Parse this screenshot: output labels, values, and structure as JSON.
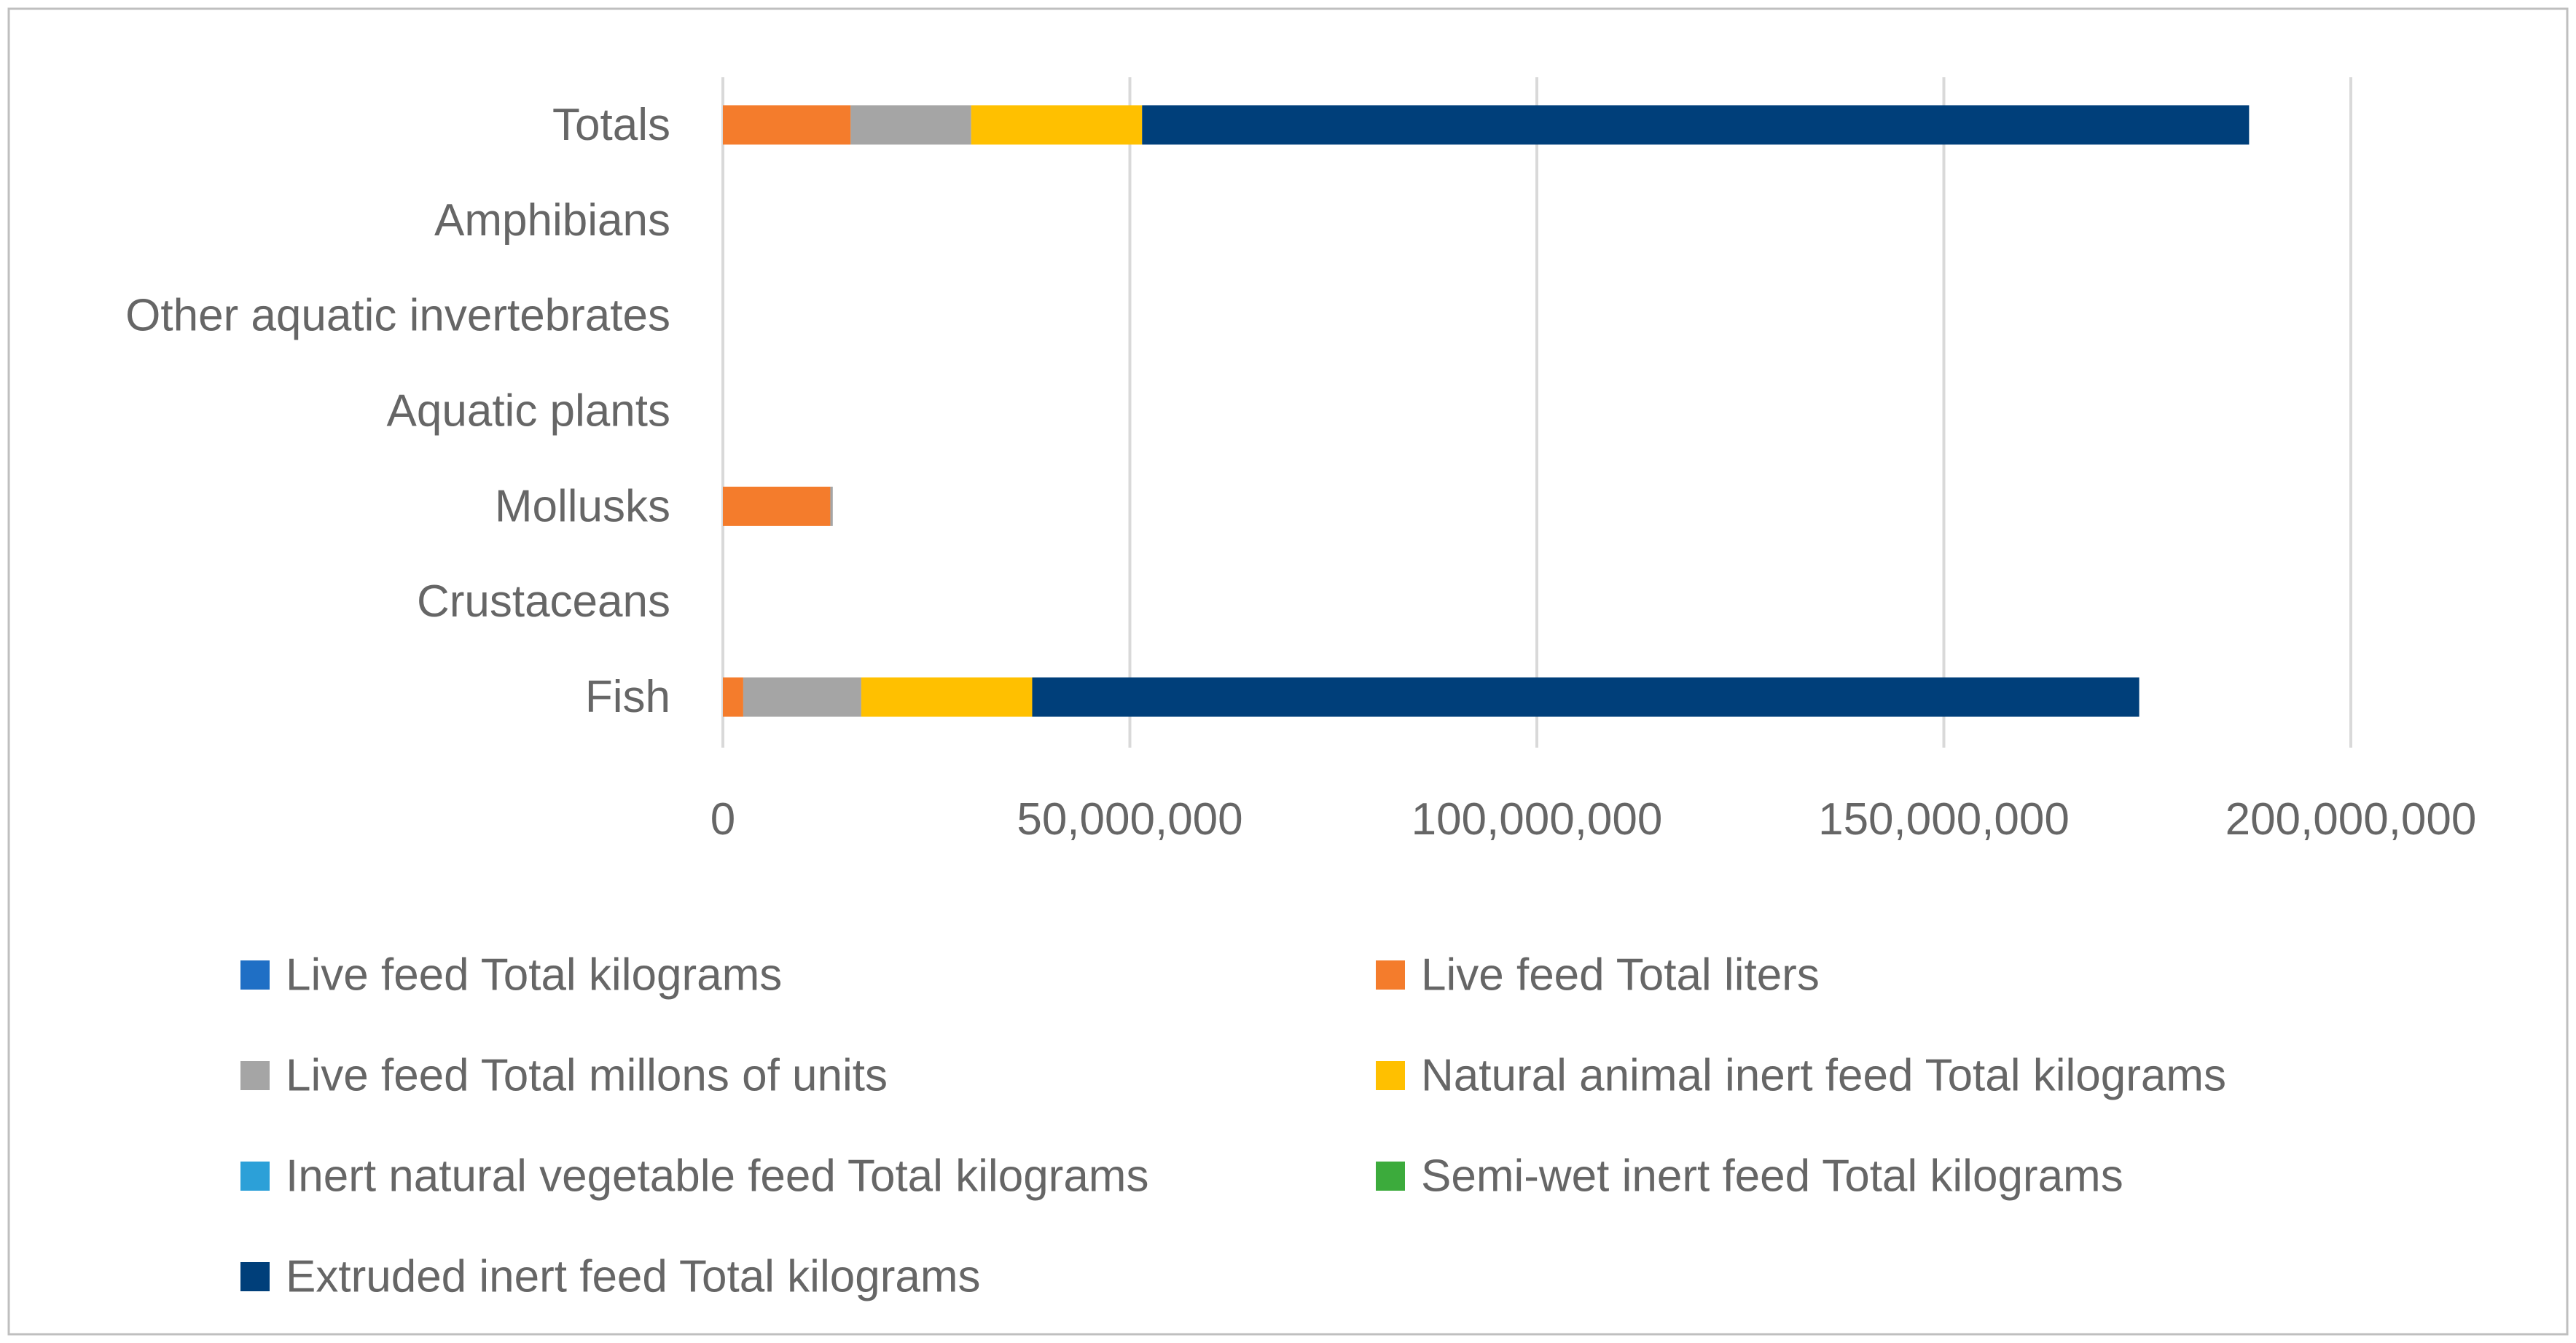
{
  "chart_data": {
    "type": "bar",
    "orientation": "horizontal",
    "stacked": true,
    "title": "",
    "xlabel": "",
    "ylabel": "",
    "xlim": [
      0,
      200000000
    ],
    "x_ticks": [
      0,
      50000000,
      100000000,
      150000000,
      200000000
    ],
    "x_tick_labels": [
      "0",
      "50,000,000",
      "100,000,000",
      "150,000,000",
      "200,000,000"
    ],
    "grid": true,
    "legend_position": "bottom",
    "categories": [
      "Fish",
      "Crustaceans",
      "Mollusks",
      "Aquatic plants",
      "Other aquatic invertebrates",
      "Amphibians",
      "Totals"
    ],
    "series": [
      {
        "name": "Live feed Total kilograms",
        "color": "#1f6fc5",
        "values": [
          0,
          0,
          0,
          0,
          0,
          0,
          0
        ]
      },
      {
        "name": "Live feed Total liters",
        "color": "#f47c2c",
        "values": [
          2500000,
          0,
          13200000,
          0,
          0,
          0,
          15700000
        ]
      },
      {
        "name": "Live feed Total millons of units",
        "color": "#a5a5a5",
        "values": [
          14500000,
          0,
          300000,
          0,
          0,
          0,
          14800000
        ]
      },
      {
        "name": "Natural animal inert feed Total kilograms",
        "color": "#ffc000",
        "values": [
          21000000,
          0,
          0,
          0,
          0,
          0,
          21000000
        ]
      },
      {
        "name": "Inert natural vegetable feed Total kilograms",
        "color": "#2ca0d8",
        "values": [
          0,
          0,
          0,
          0,
          0,
          0,
          0
        ]
      },
      {
        "name": "Semi-wet inert feed Total kilograms",
        "color": "#3cab3c",
        "values": [
          0,
          0,
          0,
          0,
          0,
          0,
          0
        ]
      },
      {
        "name": "Extruded inert feed Total kilograms",
        "color": "#003f7a",
        "values": [
          136000000,
          0,
          0,
          0,
          0,
          0,
          136000000
        ]
      }
    ]
  },
  "colors": {
    "gridline": "#d9d9d9",
    "text": "#666666",
    "frame": "#bfbfbf"
  }
}
